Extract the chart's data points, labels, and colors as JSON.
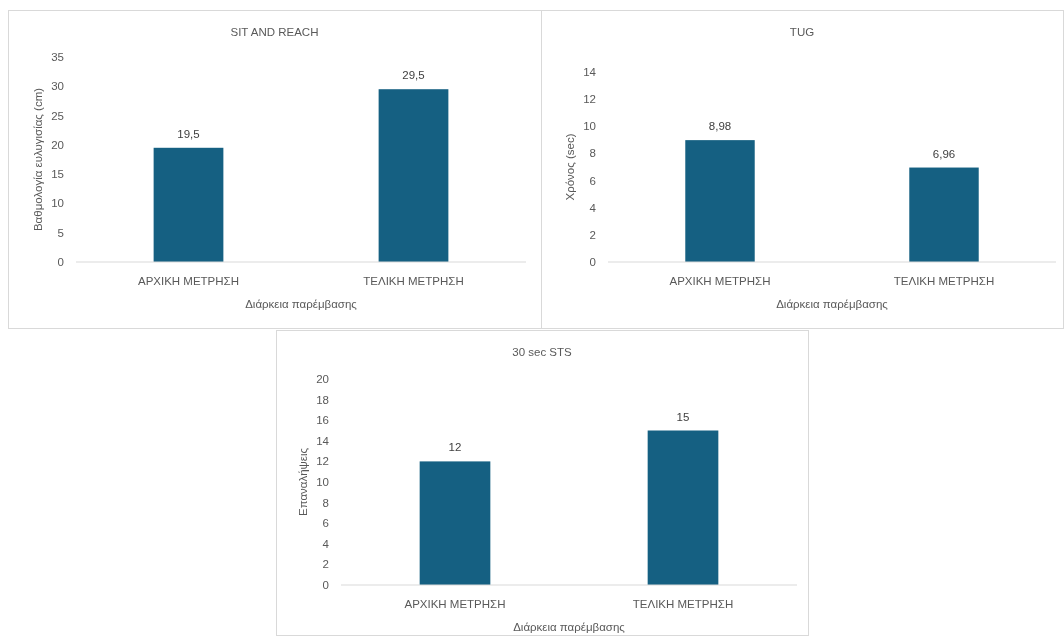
{
  "chart_data": [
    {
      "type": "bar",
      "title": "SIT AND REACH",
      "xlabel": "Διάρκεια παρέμβασης",
      "ylabel": "Βαθμολογία ευλυγισίας (cm)",
      "categories": [
        "ΑΡΧΙΚΗ ΜΕΤΡΗΣΗ",
        "ΤΕΛΙΚΗ ΜΕΤΡΗΣΗ"
      ],
      "values": [
        19.5,
        29.5
      ],
      "value_labels": [
        "19,5",
        "29,5"
      ],
      "color": "#156082",
      "ylim": [
        0,
        35
      ],
      "yticks": [
        0,
        5,
        10,
        15,
        20,
        25,
        30,
        35
      ]
    },
    {
      "type": "bar",
      "title": "TUG",
      "xlabel": "Διάρκεια παρέμβασης",
      "ylabel": "Χρόνος (sec)",
      "categories": [
        "ΑΡΧΙΚΗ ΜΕΤΡΗΣΗ",
        "ΤΕΛΙΚΗ ΜΕΤΡΗΣΗ"
      ],
      "values": [
        8.98,
        6.96
      ],
      "value_labels": [
        "8,98",
        "6,96"
      ],
      "color": "#156082",
      "ylim": [
        0,
        14
      ],
      "yticks": [
        0,
        2,
        4,
        6,
        8,
        10,
        12,
        14
      ]
    },
    {
      "type": "bar",
      "title": "30 sec STS",
      "xlabel": "Διάρκεια παρέμβασης",
      "ylabel": "Επαναλήψεις",
      "categories": [
        "ΑΡΧΙΚΗ ΜΕΤΡΗΣΗ",
        "ΤΕΛΙΚΗ ΜΕΤΡΗΣΗ"
      ],
      "values": [
        12,
        15
      ],
      "value_labels": [
        "12",
        "15"
      ],
      "color": "#156082",
      "ylim": [
        0,
        20
      ],
      "yticks": [
        0,
        2,
        4,
        6,
        8,
        10,
        12,
        14,
        16,
        18,
        20
      ]
    }
  ]
}
